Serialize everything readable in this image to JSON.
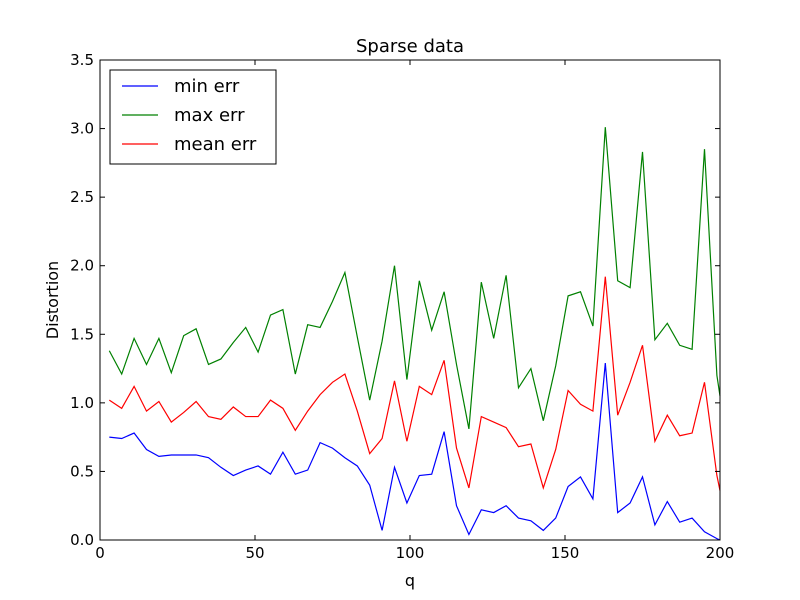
{
  "chart_data": {
    "type": "line",
    "title": "Sparse data",
    "xlabel": "q",
    "ylabel": "Distortion",
    "xlim": [
      0,
      200
    ],
    "ylim": [
      0.0,
      3.5
    ],
    "xticks": [
      0,
      50,
      100,
      150,
      200
    ],
    "xtick_labels": [
      "0",
      "50",
      "100",
      "150",
      "200"
    ],
    "yticks": [
      0.0,
      0.5,
      1.0,
      1.5,
      2.0,
      2.5,
      3.0,
      3.5
    ],
    "ytick_labels": [
      "0.0",
      "0.5",
      "1.0",
      "1.5",
      "2.0",
      "2.5",
      "3.0",
      "3.5"
    ],
    "legend_position": "top-left",
    "grid": false,
    "x": [
      3,
      7,
      11,
      15,
      19,
      23,
      27,
      31,
      35,
      39,
      43,
      47,
      51,
      55,
      59,
      63,
      67,
      71,
      75,
      79,
      83,
      87,
      91,
      95,
      99,
      103,
      107,
      111,
      115,
      119,
      123,
      127,
      131,
      135,
      139,
      143,
      147,
      151,
      155,
      159,
      163,
      167,
      171,
      175,
      179,
      183,
      187,
      191,
      195,
      199,
      200
    ],
    "series": [
      {
        "name": "min err",
        "color": "#0000ff",
        "values": [
          0.75,
          0.74,
          0.78,
          0.66,
          0.61,
          0.62,
          0.62,
          0.62,
          0.6,
          0.53,
          0.47,
          0.51,
          0.54,
          0.48,
          0.64,
          0.48,
          0.51,
          0.71,
          0.67,
          0.6,
          0.54,
          0.4,
          0.07,
          0.53,
          0.27,
          0.47,
          0.48,
          0.79,
          0.25,
          0.04,
          0.22,
          0.2,
          0.25,
          0.16,
          0.14,
          0.07,
          0.16,
          0.39,
          0.46,
          0.3,
          1.29,
          0.2,
          0.27,
          0.46,
          0.11,
          0.28,
          0.13,
          0.16,
          0.06,
          0.01,
          0.0
        ]
      },
      {
        "name": "max err",
        "color": "#008000",
        "values": [
          1.38,
          1.21,
          1.47,
          1.28,
          1.47,
          1.22,
          1.49,
          1.54,
          1.28,
          1.32,
          1.44,
          1.55,
          1.37,
          1.64,
          1.68,
          1.21,
          1.57,
          1.55,
          1.74,
          1.95,
          1.48,
          1.02,
          1.45,
          2.0,
          1.17,
          1.89,
          1.53,
          1.81,
          1.28,
          0.81,
          1.88,
          1.47,
          1.93,
          1.11,
          1.25,
          0.87,
          1.27,
          1.78,
          1.81,
          1.56,
          3.01,
          1.89,
          1.84,
          2.83,
          1.46,
          1.58,
          1.42,
          1.39,
          2.85,
          1.2,
          1.05
        ]
      },
      {
        "name": "mean err",
        "color": "#ff0000",
        "values": [
          1.02,
          0.96,
          1.12,
          0.94,
          1.01,
          0.86,
          0.93,
          1.01,
          0.9,
          0.88,
          0.97,
          0.9,
          0.9,
          1.02,
          0.96,
          0.8,
          0.94,
          1.06,
          1.15,
          1.21,
          0.94,
          0.63,
          0.74,
          1.16,
          0.72,
          1.12,
          1.06,
          1.31,
          0.67,
          0.38,
          0.9,
          0.86,
          0.82,
          0.68,
          0.7,
          0.38,
          0.66,
          1.09,
          0.99,
          0.94,
          1.92,
          0.91,
          1.15,
          1.42,
          0.72,
          0.91,
          0.76,
          0.78,
          1.15,
          0.47,
          0.36
        ]
      }
    ]
  }
}
